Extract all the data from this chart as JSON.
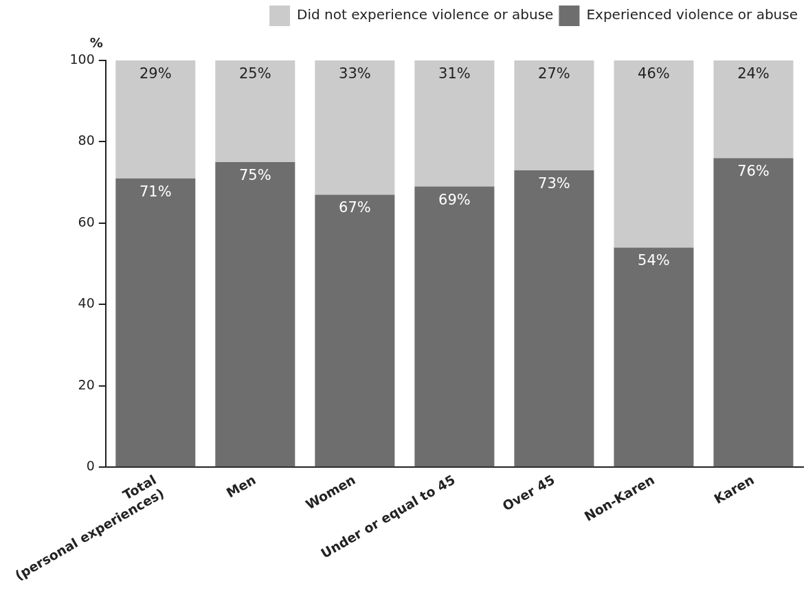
{
  "chart_data": {
    "type": "bar",
    "stacked": true,
    "ylabel": "%",
    "categories": [
      "Total\n(personal experiences)",
      "Men",
      "Women",
      "Under or equal to 45",
      "Over 45",
      "Non-Karen",
      "Karen"
    ],
    "series": [
      {
        "name": "Experienced violence or abuse",
        "color": "#6e6e6e",
        "values": [
          71,
          75,
          67,
          69,
          73,
          54,
          76
        ],
        "value_labels": [
          "71%",
          "75%",
          "67%",
          "69%",
          "73%",
          "54%",
          "76%"
        ]
      },
      {
        "name": "Did not experience violence or abuse",
        "color": "#cbcbcb",
        "values": [
          29,
          25,
          33,
          31,
          27,
          46,
          24
        ],
        "value_labels": [
          "29%",
          "25%",
          "33%",
          "31%",
          "27%",
          "46%",
          "24%"
        ]
      }
    ],
    "ylim": [
      0,
      100
    ],
    "yticks": [
      0,
      20,
      40,
      60,
      80,
      100
    ],
    "grid": false,
    "legend": "top right"
  }
}
